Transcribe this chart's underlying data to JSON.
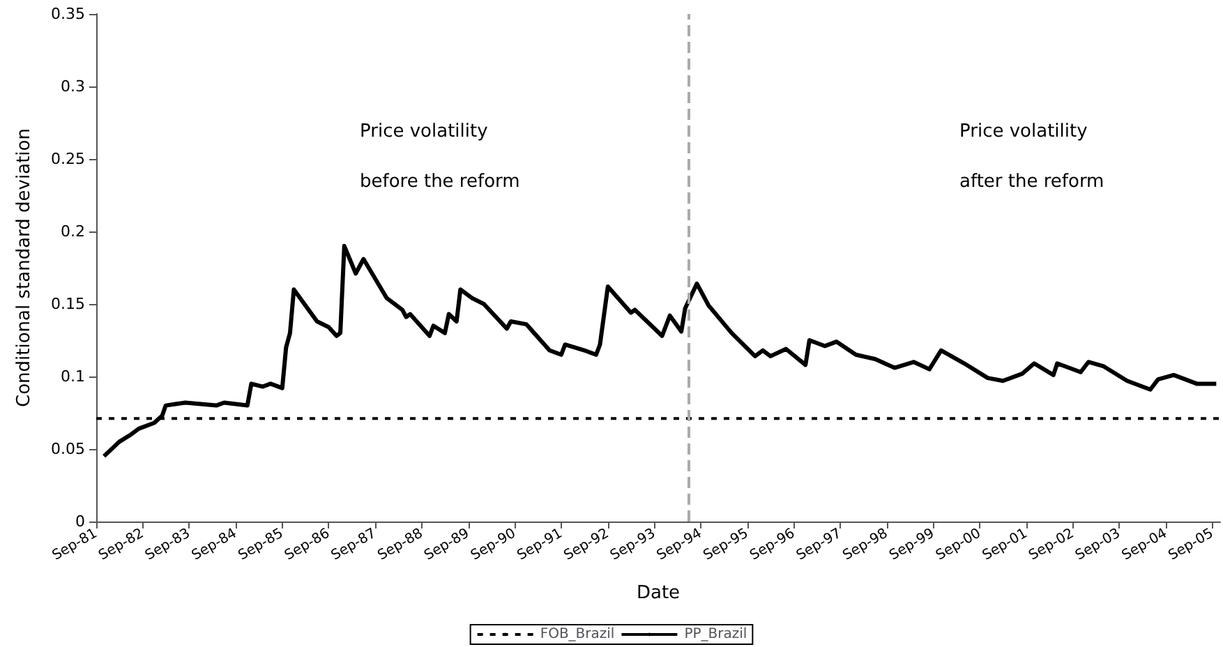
{
  "chart_data": {
    "type": "line",
    "xlabel": "Date",
    "ylabel": "Conditional standard deviation",
    "annotations": [
      "Price volatility",
      "before the reform",
      "Price volatility",
      "after the reform"
    ],
    "xlim": [
      "1981-09",
      "2005-11"
    ],
    "xticks": [
      {
        "value": "1981-09",
        "label": "Sep-81"
      },
      {
        "value": "1982-09",
        "label": "Sep-82"
      },
      {
        "value": "1983-09",
        "label": "Sep-83"
      },
      {
        "value": "1984-09",
        "label": "Sep-84"
      },
      {
        "value": "1985-09",
        "label": "Sep-85"
      },
      {
        "value": "1986-09",
        "label": "Sep-86"
      },
      {
        "value": "1987-09",
        "label": "Sep-87"
      },
      {
        "value": "1988-09",
        "label": "Sep-88"
      },
      {
        "value": "1989-09",
        "label": "Sep-89"
      },
      {
        "value": "1990-09",
        "label": "Sep-90"
      },
      {
        "value": "1991-09",
        "label": "Sep-91"
      },
      {
        "value": "1992-09",
        "label": "Sep-92"
      },
      {
        "value": "1993-09",
        "label": "Sep-93"
      },
      {
        "value": "1994-09",
        "label": "Sep-94"
      },
      {
        "value": "1995-09",
        "label": "Sep-95"
      },
      {
        "value": "1996-09",
        "label": "Sep-96"
      },
      {
        "value": "1997-09",
        "label": "Sep-97"
      },
      {
        "value": "1998-09",
        "label": "Sep-98"
      },
      {
        "value": "1999-09",
        "label": "Sep-99"
      },
      {
        "value": "2000-09",
        "label": "Sep-00"
      },
      {
        "value": "2001-09",
        "label": "Sep-01"
      },
      {
        "value": "2002-09",
        "label": "Sep-02"
      },
      {
        "value": "2003-09",
        "label": "Sep-03"
      },
      {
        "value": "2004-09",
        "label": "Sep-04"
      },
      {
        "value": "2005-09",
        "label": "Sep-05"
      }
    ],
    "ylim": [
      0,
      0.35
    ],
    "yticks": [
      0,
      0.05,
      0.1,
      0.15,
      0.2,
      0.25,
      0.3,
      0.35
    ],
    "grid": false,
    "legend": "bottom",
    "marker": "none",
    "ref_lines": [
      {
        "axis": "x",
        "value": "1994-06",
        "color": "#aaaaaa",
        "line_style": "dashed"
      }
    ],
    "series": [
      {
        "name": "FOB_Brazil",
        "color": "#000000",
        "line_style": "dotted",
        "x": [
          "1981-09",
          "2005-11"
        ],
        "values": [
          0.071,
          0.071
        ]
      },
      {
        "name": "PP_Brazil",
        "color": "#000000",
        "line_style": "solid",
        "x": [
          "1981-11",
          "1982-03",
          "1982-06",
          "1982-08",
          "1982-12",
          "1983-02",
          "1983-03",
          "1983-08",
          "1984-04",
          "1984-06",
          "1984-12",
          "1985-01",
          "1985-04",
          "1985-06",
          "1985-09",
          "1985-10",
          "1985-11",
          "1985-12",
          "1986-06",
          "1986-09",
          "1986-11",
          "1986-12",
          "1987-01",
          "1987-04",
          "1987-06",
          "1987-12",
          "1988-04",
          "1988-05",
          "1988-06",
          "1988-11",
          "1988-12",
          "1989-03",
          "1989-04",
          "1989-06",
          "1989-07",
          "1989-10",
          "1990-01",
          "1990-07",
          "1990-08",
          "1990-12",
          "1991-06",
          "1991-09",
          "1991-10",
          "1992-03",
          "1992-06",
          "1992-07",
          "1992-09",
          "1993-03",
          "1993-04",
          "1993-11",
          "1994-01",
          "1994-04",
          "1994-05",
          "1994-08",
          "1994-11",
          "1995-05",
          "1995-11",
          "1996-01",
          "1996-03",
          "1996-07",
          "1996-12",
          "1997-01",
          "1997-05",
          "1997-08",
          "1998-01",
          "1998-06",
          "1998-11",
          "1999-04",
          "1999-08",
          "1999-11",
          "2000-05",
          "2000-11",
          "2001-03",
          "2001-08",
          "2001-11",
          "2002-04",
          "2002-05",
          "2002-11",
          "2003-01",
          "2003-05",
          "2003-11",
          "2004-05",
          "2004-07",
          "2004-11",
          "2005-05",
          "2005-10"
        ],
        "values": [
          0.045,
          0.055,
          0.06,
          0.064,
          0.068,
          0.073,
          0.08,
          0.082,
          0.08,
          0.082,
          0.08,
          0.095,
          0.093,
          0.095,
          0.092,
          0.12,
          0.13,
          0.16,
          0.138,
          0.134,
          0.128,
          0.13,
          0.19,
          0.171,
          0.181,
          0.154,
          0.146,
          0.141,
          0.143,
          0.128,
          0.135,
          0.13,
          0.143,
          0.138,
          0.16,
          0.154,
          0.15,
          0.133,
          0.138,
          0.136,
          0.118,
          0.115,
          0.122,
          0.118,
          0.115,
          0.122,
          0.162,
          0.144,
          0.146,
          0.128,
          0.142,
          0.131,
          0.147,
          0.164,
          0.149,
          0.13,
          0.114,
          0.118,
          0.114,
          0.119,
          0.108,
          0.125,
          0.121,
          0.124,
          0.115,
          0.112,
          0.106,
          0.11,
          0.105,
          0.118,
          0.109,
          0.099,
          0.097,
          0.102,
          0.109,
          0.101,
          0.109,
          0.103,
          0.11,
          0.107,
          0.097,
          0.091,
          0.098,
          0.101,
          0.095,
          0.095
        ]
      }
    ]
  }
}
